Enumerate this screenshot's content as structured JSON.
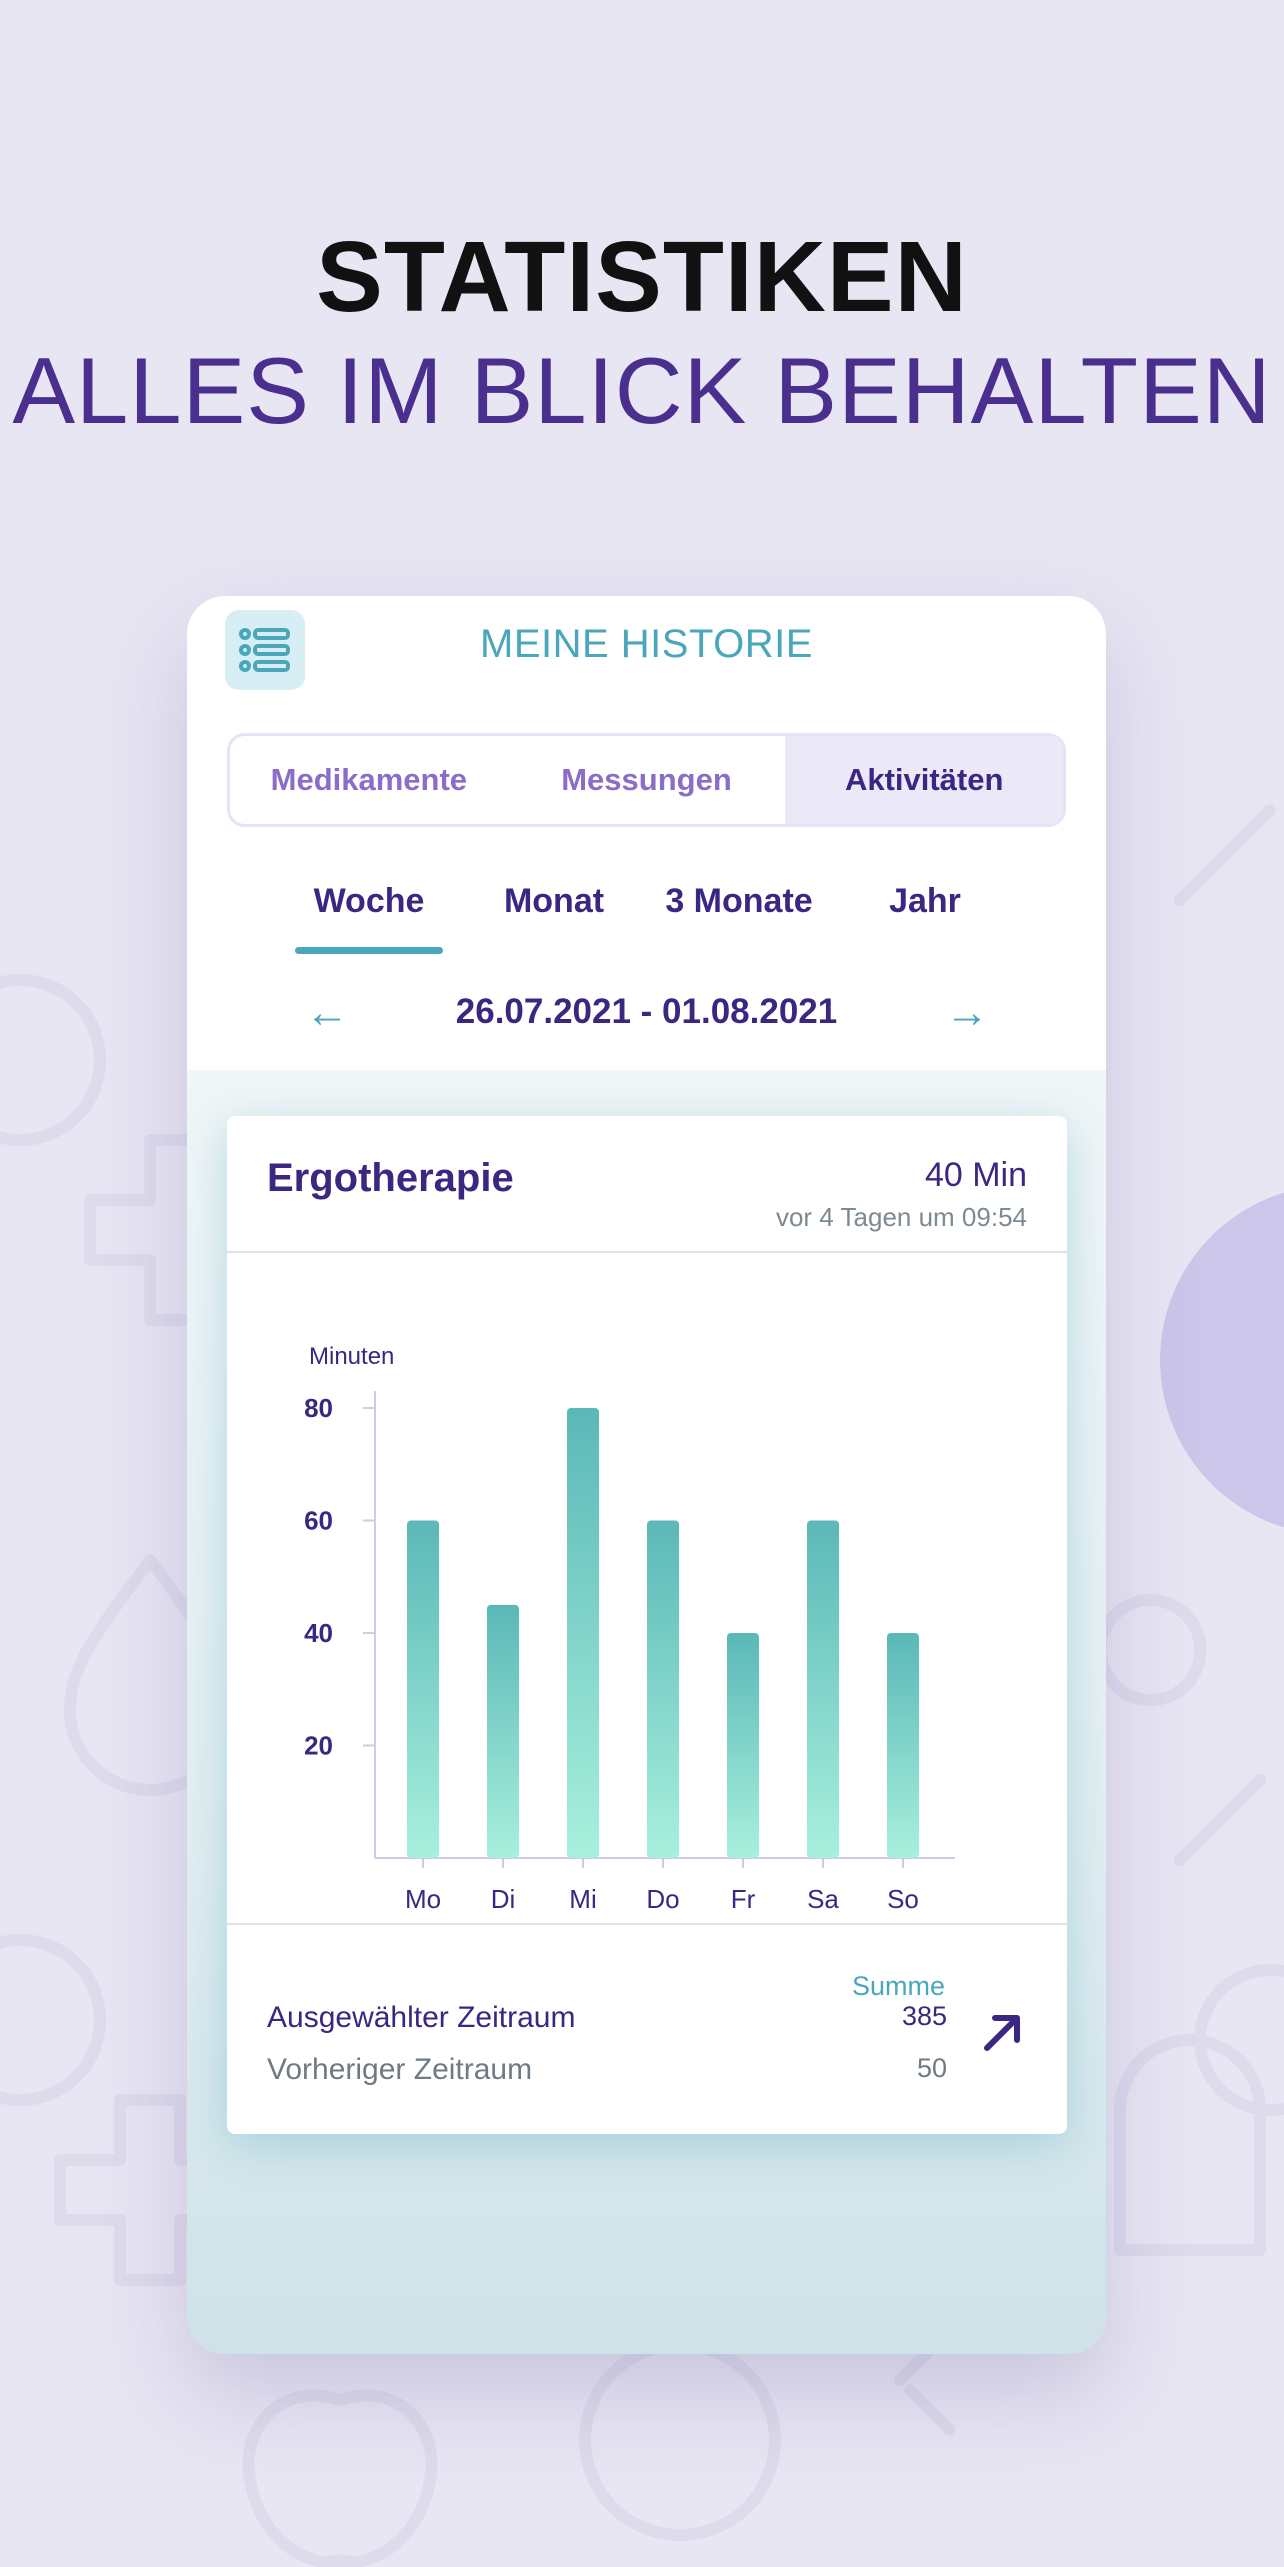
{
  "headline": {
    "line1": "STATISTIKEN",
    "line2": "ALLES IM BLICK BEHALTEN"
  },
  "app": {
    "menu_icon": "list-icon",
    "title": "MEINE HISTORIE",
    "segments": [
      "Medikamente",
      "Messungen",
      "Aktivitäten"
    ],
    "active_segment": "Aktivitäten",
    "periods": [
      "Woche",
      "Monat",
      "3 Monate",
      "Jahr"
    ],
    "active_period": "Woche",
    "date_range": "26.07.2021 - 01.08.2021",
    "prev_icon": "arrow-left-icon",
    "next_icon": "arrow-right-icon"
  },
  "card": {
    "title": "Ergotherapie",
    "duration": "40 Min",
    "last_time": "vor 4 Tagen um 09:54",
    "summary_header": "Summe",
    "selected_label": "Ausgewählter Zeitraum",
    "selected_value": "385",
    "previous_label": "Vorheriger Zeitraum",
    "previous_value": "50",
    "trend_icon": "arrow-up-right-icon"
  },
  "colors": {
    "primary": "#3b2682",
    "accent": "#4aa7bb",
    "segment_text": "#8a6cc9",
    "bar_top": "#5bb8b8",
    "bar_bottom": "#a8f0dc",
    "background": "#e8e6f3"
  },
  "chart_data": {
    "type": "bar",
    "ylabel": "Minuten",
    "categories": [
      "Mo",
      "Di",
      "Mi",
      "Do",
      "Fr",
      "Sa",
      "So"
    ],
    "values": [
      60,
      45,
      80,
      60,
      40,
      60,
      40
    ],
    "yticks": [
      20,
      40,
      60,
      80
    ],
    "ylim": [
      0,
      80
    ],
    "grid": false
  }
}
